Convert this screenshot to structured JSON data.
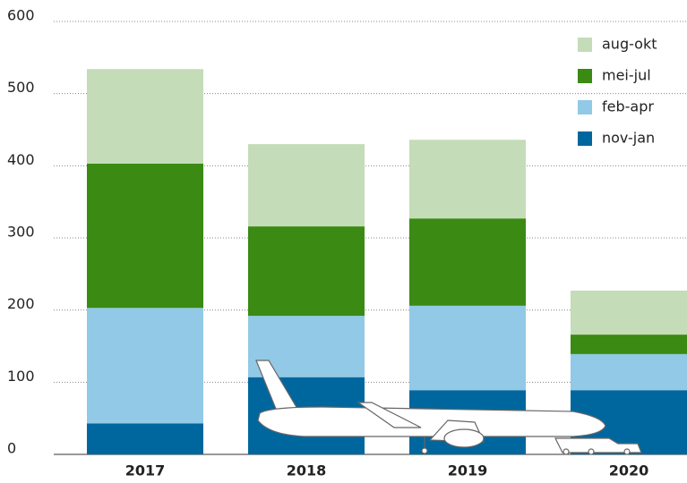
{
  "chart_data": {
    "type": "stacked-bar",
    "categories": [
      "2017",
      "2018",
      "2019",
      "2020"
    ],
    "series": [
      {
        "name": "nov-jan",
        "color": "#00679e",
        "values": [
          43,
          107,
          89,
          89
        ]
      },
      {
        "name": "feb-apr",
        "color": "#92c9e6",
        "values": [
          160,
          85,
          117,
          50
        ]
      },
      {
        "name": "mei-jul",
        "color": "#3a8a13",
        "values": [
          200,
          124,
          121,
          27
        ]
      },
      {
        "name": "aug-okt",
        "color": "#c4dcb8",
        "values": [
          131,
          114,
          109,
          61
        ]
      }
    ],
    "ylim": [
      0,
      600
    ],
    "yticks": [
      0,
      100,
      200,
      300,
      400,
      500,
      600
    ],
    "grid": true,
    "legend": "top-right"
  }
}
